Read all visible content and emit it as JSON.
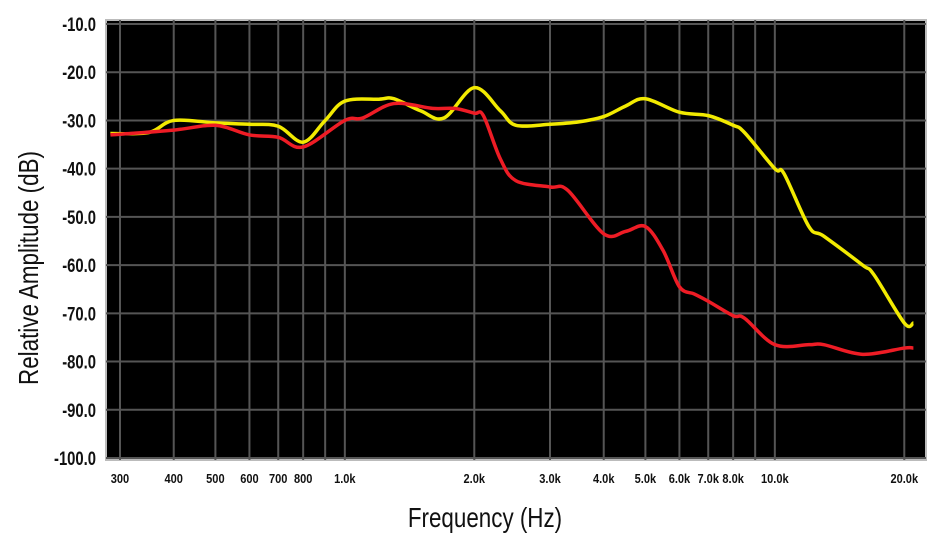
{
  "chart_data": {
    "type": "line",
    "title": "",
    "xlabel": "Frequency (Hz)",
    "ylabel": "Relative Amplitude (dB)",
    "x_scale": "log",
    "xlim": [
      285,
      21000
    ],
    "ylim": [
      -100,
      -10
    ],
    "grid": true,
    "background": "#000000",
    "grid_color": "#555555",
    "y_ticks": [
      "-10.0",
      "-20.0",
      "-30.0",
      "-40.0",
      "-50.0",
      "-60.0",
      "-70.0",
      "-80.0",
      "-90.0",
      "-100.0"
    ],
    "y_tick_values": [
      -10,
      -20,
      -30,
      -40,
      -50,
      -60,
      -70,
      -80,
      -90,
      -100
    ],
    "x_ticks": [
      {
        "v": 300,
        "label": "300"
      },
      {
        "v": 400,
        "label": "400"
      },
      {
        "v": 500,
        "label": "500"
      },
      {
        "v": 600,
        "label": "600"
      },
      {
        "v": 700,
        "label": "700"
      },
      {
        "v": 800,
        "label": "800"
      },
      {
        "v": 1000,
        "label": "1.0k"
      },
      {
        "v": 2000,
        "label": "2.0k"
      },
      {
        "v": 3000,
        "label": "3.0k"
      },
      {
        "v": 4000,
        "label": "4.0k"
      },
      {
        "v": 5000,
        "label": "5.0k"
      },
      {
        "v": 6000,
        "label": "6.0k"
      },
      {
        "v": 7000,
        "label": "7.0k"
      },
      {
        "v": 8000,
        "label": "8.0k"
      },
      {
        "v": 10000,
        "label": "10.0k"
      },
      {
        "v": 20000,
        "label": "20.0k"
      }
    ],
    "x_gridlines": [
      300,
      400,
      500,
      600,
      700,
      800,
      900,
      1000,
      2000,
      3000,
      4000,
      5000,
      6000,
      7000,
      8000,
      9000,
      10000,
      20000
    ],
    "series": [
      {
        "color": "#f2ea00",
        "points": [
          [
            285,
            -32.7
          ],
          [
            350,
            -32.5
          ],
          [
            400,
            -30
          ],
          [
            500,
            -30.5
          ],
          [
            600,
            -30.8
          ],
          [
            700,
            -31.2
          ],
          [
            800,
            -34.5
          ],
          [
            900,
            -30
          ],
          [
            1000,
            -26
          ],
          [
            1200,
            -25.6
          ],
          [
            1300,
            -25.5
          ],
          [
            1500,
            -28
          ],
          [
            1700,
            -29.5
          ],
          [
            2000,
            -23.2
          ],
          [
            2300,
            -28
          ],
          [
            2500,
            -31
          ],
          [
            3000,
            -30.8
          ],
          [
            3500,
            -30.3
          ],
          [
            4000,
            -29.2
          ],
          [
            4500,
            -27
          ],
          [
            5000,
            -25.5
          ],
          [
            6000,
            -28.3
          ],
          [
            7000,
            -29
          ],
          [
            8000,
            -31
          ],
          [
            8500,
            -32.5
          ],
          [
            10000,
            -40
          ],
          [
            10500,
            -41
          ],
          [
            12000,
            -52
          ],
          [
            13000,
            -54
          ],
          [
            16000,
            -60
          ],
          [
            17000,
            -62
          ],
          [
            20000,
            -72
          ],
          [
            21000,
            -72
          ]
        ]
      },
      {
        "color": "#ee1c25",
        "points": [
          [
            285,
            -33
          ],
          [
            400,
            -32
          ],
          [
            500,
            -31
          ],
          [
            600,
            -33
          ],
          [
            700,
            -33.5
          ],
          [
            800,
            -35.5
          ],
          [
            1000,
            -30
          ],
          [
            1100,
            -29.5
          ],
          [
            1300,
            -26.5
          ],
          [
            1600,
            -27.5
          ],
          [
            1800,
            -27.5
          ],
          [
            2000,
            -28.5
          ],
          [
            2100,
            -29
          ],
          [
            2300,
            -38
          ],
          [
            2500,
            -42.5
          ],
          [
            3000,
            -43.8
          ],
          [
            3300,
            -44.5
          ],
          [
            4000,
            -53.5
          ],
          [
            4500,
            -53
          ],
          [
            5000,
            -52
          ],
          [
            5500,
            -57
          ],
          [
            6000,
            -64.5
          ],
          [
            6500,
            -66
          ],
          [
            7000,
            -67.5
          ],
          [
            8000,
            -70.5
          ],
          [
            8500,
            -71
          ],
          [
            10000,
            -76.5
          ],
          [
            12000,
            -76.5
          ],
          [
            13000,
            -76.5
          ],
          [
            16000,
            -78.5
          ],
          [
            20000,
            -77.2
          ],
          [
            21000,
            -77.2
          ]
        ]
      }
    ]
  }
}
